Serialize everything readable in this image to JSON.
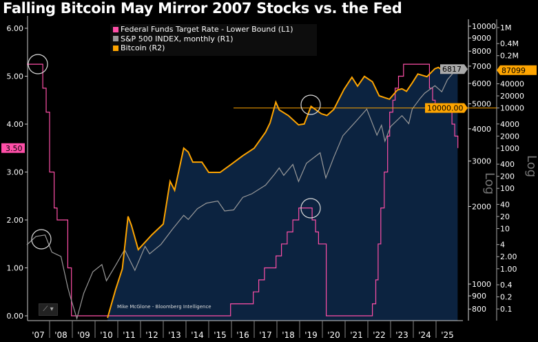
{
  "chart_data": {
    "type": "line",
    "title": "Falling Bitcoin May Mirror 2007 Stocks vs. the Fed",
    "credit": "Mike McGlone - Bloomberg Intelligence",
    "x_ticks": [
      "'07",
      "'08",
      "'09",
      "'10",
      "'11",
      "'12",
      "'13",
      "'14",
      "'15",
      "'16",
      "'17",
      "'18",
      "'19",
      "'20",
      "'21",
      "'22",
      "'23",
      "'24",
      "'25"
    ],
    "xlim": [
      2007.0,
      2026.0
    ],
    "left_axis": {
      "ticks": [
        "0.00",
        "1.00",
        "2.00",
        "3.00",
        "4.00",
        "5.00",
        "6.00"
      ],
      "ylim": [
        0,
        6
      ],
      "scale": "linear"
    },
    "right1_axis": {
      "ticks": [
        "800",
        "900",
        "1000",
        "2000",
        "3000",
        "4000",
        "5000",
        "6000",
        "7000",
        "8000",
        "9000",
        "10000"
      ],
      "label": "Log",
      "scale": "log",
      "ylim": [
        750,
        10000
      ]
    },
    "right2_axis": {
      "ticks": [
        "0.1",
        "0.2",
        "0.4",
        "1.00",
        "2.00",
        "4",
        "10",
        "20",
        "40",
        "100",
        "200",
        "400",
        "1000",
        "2000",
        "4000",
        "10000",
        "20000",
        "40000",
        "0.2M",
        "0.4M",
        "1M"
      ],
      "label": "Log",
      "scale": "log",
      "ylim": [
        0.1,
        1000000
      ]
    },
    "legend_position": "top",
    "series": [
      {
        "name": "Federal Funds Target Rate - Lower Bound (L1)",
        "axis": "left",
        "color": "#ff4fa8",
        "step": true,
        "last_value": "3.50",
        "points": [
          [
            2007.0,
            5.25
          ],
          [
            2007.7,
            4.75
          ],
          [
            2007.85,
            4.25
          ],
          [
            2008.0,
            3.0
          ],
          [
            2008.2,
            2.25
          ],
          [
            2008.33,
            2.0
          ],
          [
            2008.8,
            1.0
          ],
          [
            2008.96,
            0.0
          ],
          [
            2015.96,
            0.25
          ],
          [
            2016.96,
            0.5
          ],
          [
            2017.2,
            0.75
          ],
          [
            2017.45,
            1.0
          ],
          [
            2017.96,
            1.25
          ],
          [
            2018.2,
            1.5
          ],
          [
            2018.45,
            1.75
          ],
          [
            2018.7,
            2.0
          ],
          [
            2018.96,
            2.25
          ],
          [
            2019.55,
            2.0
          ],
          [
            2019.7,
            1.75
          ],
          [
            2019.83,
            1.5
          ],
          [
            2020.17,
            0.0
          ],
          [
            2022.2,
            0.25
          ],
          [
            2022.35,
            0.75
          ],
          [
            2022.45,
            1.5
          ],
          [
            2022.57,
            2.25
          ],
          [
            2022.72,
            3.0
          ],
          [
            2022.87,
            3.75
          ],
          [
            2022.96,
            4.25
          ],
          [
            2023.1,
            4.5
          ],
          [
            2023.2,
            4.75
          ],
          [
            2023.35,
            5.0
          ],
          [
            2023.57,
            5.25
          ],
          [
            2024.71,
            4.75
          ],
          [
            2024.85,
            4.5
          ],
          [
            2024.96,
            4.25
          ],
          [
            2025.7,
            4.0
          ],
          [
            2025.82,
            3.75
          ],
          [
            2025.96,
            3.5
          ]
        ]
      },
      {
        "name": "S&P 500 INDEX, monthly (R1)",
        "axis": "right1",
        "color": "#9a9a9a",
        "last_value": "6817",
        "points": [
          [
            2007.0,
            1420
          ],
          [
            2007.4,
            1530
          ],
          [
            2007.8,
            1550
          ],
          [
            2008.1,
            1330
          ],
          [
            2008.5,
            1280
          ],
          [
            2008.8,
            970
          ],
          [
            2008.9,
            900
          ],
          [
            2009.2,
            735
          ],
          [
            2009.5,
            920
          ],
          [
            2009.9,
            1115
          ],
          [
            2010.3,
            1190
          ],
          [
            2010.5,
            1030
          ],
          [
            2010.9,
            1180
          ],
          [
            2011.3,
            1360
          ],
          [
            2011.75,
            1130
          ],
          [
            2012.2,
            1400
          ],
          [
            2012.4,
            1310
          ],
          [
            2012.9,
            1426
          ],
          [
            2013.4,
            1630
          ],
          [
            2013.9,
            1848
          ],
          [
            2014.1,
            1780
          ],
          [
            2014.5,
            1960
          ],
          [
            2014.9,
            2060
          ],
          [
            2015.4,
            2100
          ],
          [
            2015.7,
            1920
          ],
          [
            2016.1,
            1940
          ],
          [
            2016.5,
            2170
          ],
          [
            2016.9,
            2240
          ],
          [
            2017.5,
            2420
          ],
          [
            2017.9,
            2670
          ],
          [
            2018.1,
            2820
          ],
          [
            2018.3,
            2640
          ],
          [
            2018.7,
            2910
          ],
          [
            2018.95,
            2500
          ],
          [
            2019.3,
            2940
          ],
          [
            2019.9,
            3230
          ],
          [
            2020.15,
            2580
          ],
          [
            2020.5,
            3100
          ],
          [
            2020.9,
            3760
          ],
          [
            2021.5,
            4300
          ],
          [
            2021.95,
            4770
          ],
          [
            2022.4,
            3780
          ],
          [
            2022.6,
            4130
          ],
          [
            2022.75,
            3580
          ],
          [
            2023.0,
            4080
          ],
          [
            2023.5,
            4500
          ],
          [
            2023.8,
            4190
          ],
          [
            2023.95,
            4770
          ],
          [
            2024.3,
            5250
          ],
          [
            2024.5,
            5500
          ],
          [
            2024.95,
            5880
          ],
          [
            2025.25,
            5570
          ],
          [
            2025.5,
            6200
          ],
          [
            2025.9,
            6817
          ]
        ]
      },
      {
        "name": "Bitcoin (R2)",
        "axis": "right2",
        "color": "#ffa500",
        "last_value": "87099",
        "points": [
          [
            2010.55,
            0.06
          ],
          [
            2010.9,
            0.3
          ],
          [
            2011.2,
            1
          ],
          [
            2011.45,
            20
          ],
          [
            2011.6,
            12
          ],
          [
            2011.9,
            3
          ],
          [
            2012.5,
            7
          ],
          [
            2013.0,
            13
          ],
          [
            2013.3,
            150
          ],
          [
            2013.5,
            90
          ],
          [
            2013.9,
            1000
          ],
          [
            2014.1,
            800
          ],
          [
            2014.3,
            450
          ],
          [
            2014.7,
            450
          ],
          [
            2015.0,
            250
          ],
          [
            2015.5,
            250
          ],
          [
            2016.0,
            400
          ],
          [
            2016.5,
            650
          ],
          [
            2017.0,
            1000
          ],
          [
            2017.5,
            2500
          ],
          [
            2017.7,
            4300
          ],
          [
            2017.95,
            14000
          ],
          [
            2018.1,
            9000
          ],
          [
            2018.5,
            6500
          ],
          [
            2018.95,
            3800
          ],
          [
            2019.2,
            4000
          ],
          [
            2019.5,
            11000
          ],
          [
            2019.95,
            7200
          ],
          [
            2020.2,
            6500
          ],
          [
            2020.5,
            9200
          ],
          [
            2020.95,
            29000
          ],
          [
            2021.3,
            58000
          ],
          [
            2021.55,
            35000
          ],
          [
            2021.85,
            61000
          ],
          [
            2022.2,
            45000
          ],
          [
            2022.5,
            20000
          ],
          [
            2022.95,
            16500
          ],
          [
            2023.3,
            28000
          ],
          [
            2023.5,
            30000
          ],
          [
            2023.7,
            26000
          ],
          [
            2023.95,
            42000
          ],
          [
            2024.2,
            70000
          ],
          [
            2024.6,
            60000
          ],
          [
            2024.95,
            95000
          ],
          [
            2025.1,
            102000
          ],
          [
            2025.3,
            85000
          ],
          [
            2025.5,
            108000
          ],
          [
            2025.75,
            114000
          ],
          [
            2025.95,
            87099
          ]
        ]
      }
    ],
    "annotations": {
      "hline_label": "10000.00",
      "hline_value": 10000,
      "hline_from": 2016.0
    }
  }
}
